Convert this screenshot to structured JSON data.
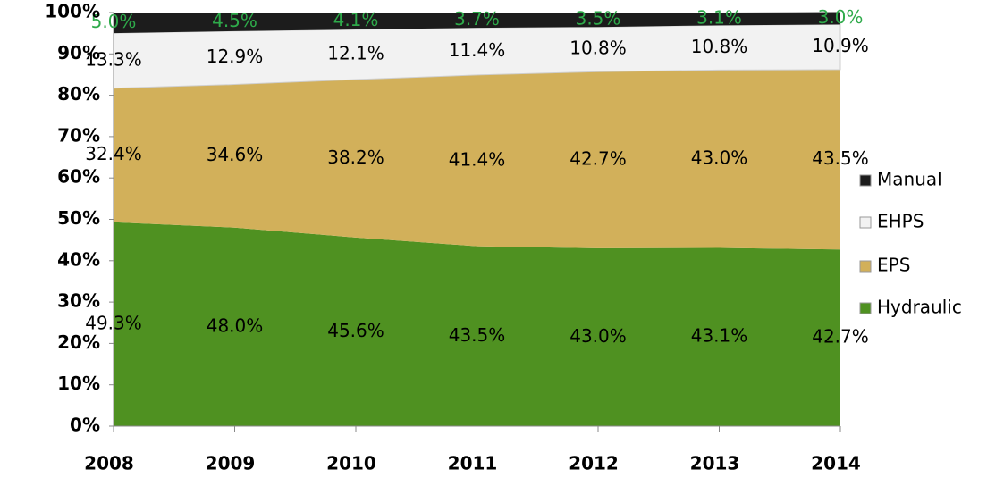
{
  "chart_data": {
    "type": "stacked_area",
    "categories": [
      "2008",
      "2009",
      "2010",
      "2011",
      "2012",
      "2013",
      "2014"
    ],
    "series": [
      {
        "name": "Hydraulic",
        "color": "#4f9121",
        "label_color": "#000000",
        "values": [
          49.3,
          48.0,
          45.6,
          43.5,
          43.0,
          43.1,
          42.7
        ],
        "value_labels": [
          "49.3%",
          "48.0%",
          "45.6%",
          "43.5%",
          "43.0%",
          "43.1%",
          "42.7%"
        ]
      },
      {
        "name": "EPS",
        "color": "#d2b05a",
        "label_color": "#000000",
        "values": [
          32.4,
          34.6,
          38.2,
          41.4,
          42.7,
          43.0,
          43.5
        ],
        "value_labels": [
          "32.4%",
          "34.6%",
          "38.2%",
          "41.4%",
          "42.7%",
          "43.0%",
          "43.5%"
        ]
      },
      {
        "name": "EHPS",
        "color": "#f2f2f2",
        "label_color": "#000000",
        "values": [
          13.3,
          12.9,
          12.1,
          11.4,
          10.8,
          10.8,
          10.9
        ],
        "value_labels": [
          "13.3%",
          "12.9%",
          "12.1%",
          "11.4%",
          "10.8%",
          "10.8%",
          "10.9%"
        ]
      },
      {
        "name": "Manual",
        "color": "#1c1c1c",
        "label_color": "#2eaa4a",
        "values": [
          5.0,
          4.5,
          4.1,
          3.7,
          3.5,
          3.1,
          3.0
        ],
        "value_labels": [
          "5.0%",
          "4.5%",
          "4.1%",
          "3.7%",
          "3.5%",
          "3.1%",
          "3.0%"
        ]
      }
    ],
    "ylim": [
      0,
      100
    ],
    "yticks": [
      {
        "value": 0,
        "label": "0%"
      },
      {
        "value": 10,
        "label": "10%"
      },
      {
        "value": 20,
        "label": "20%"
      },
      {
        "value": 30,
        "label": "30%"
      },
      {
        "value": 40,
        "label": "40%"
      },
      {
        "value": 50,
        "label": "50%"
      },
      {
        "value": 60,
        "label": "60%"
      },
      {
        "value": 70,
        "label": "70%"
      },
      {
        "value": 80,
        "label": "80%"
      },
      {
        "value": 90,
        "label": "90%"
      },
      {
        "value": 100,
        "label": "100%"
      }
    ],
    "legend": "right"
  }
}
